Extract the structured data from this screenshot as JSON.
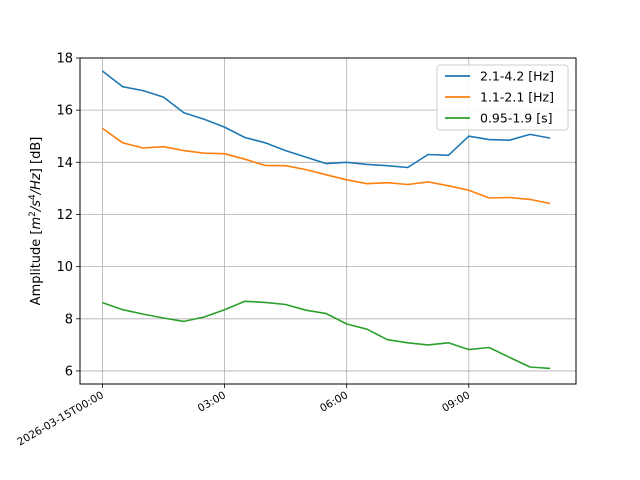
{
  "chart_data": {
    "type": "line",
    "xlabel": "",
    "ylabel_html": "Amplitude [m²/s⁴/Hz] [dB]",
    "ylabel_parts": [
      "Amplitude [",
      "m",
      "2",
      "/",
      "s",
      "4",
      "/",
      "Hz",
      "] [dB]"
    ],
    "ylim": [
      5.5,
      18.0
    ],
    "yticks": [
      6,
      8,
      10,
      12,
      14,
      16,
      18
    ],
    "ytick_labels": [
      "6",
      "8",
      "10",
      "12",
      "14",
      "16",
      "18"
    ],
    "xlim": [
      "2026-03-14T23:27",
      "2026-03-15T11:38"
    ],
    "xticks": [
      "2026-03-15T00:00",
      "2026-03-15T03:00",
      "2026-03-15T06:00",
      "2026-03-15T09:00"
    ],
    "xtick_labels": [
      "2026-03-15T00:00",
      "03:00",
      "06:00",
      "09:00"
    ],
    "grid": true,
    "legend_position": "top-right",
    "x": [
      "2026-03-15T00:00",
      "2026-03-15T00:30",
      "2026-03-15T01:00",
      "2026-03-15T01:30",
      "2026-03-15T02:00",
      "2026-03-15T02:30",
      "2026-03-15T03:00",
      "2026-03-15T03:30",
      "2026-03-15T04:00",
      "2026-03-15T04:30",
      "2026-03-15T05:00",
      "2026-03-15T05:30",
      "2026-03-15T06:00",
      "2026-03-15T06:30",
      "2026-03-15T07:00",
      "2026-03-15T07:30",
      "2026-03-15T08:00",
      "2026-03-15T08:30",
      "2026-03-15T09:00",
      "2026-03-15T09:30",
      "2026-03-15T10:00",
      "2026-03-15T10:30",
      "2026-03-15T11:00"
    ],
    "series": [
      {
        "name": "2.1-4.2 [Hz]",
        "color": "#1f77b4",
        "values": [
          17.5,
          16.9,
          16.75,
          16.5,
          15.9,
          15.65,
          15.35,
          14.95,
          14.75,
          14.45,
          14.2,
          13.95,
          14.0,
          13.92,
          13.87,
          13.8,
          14.3,
          14.27,
          15.0,
          14.87,
          14.85,
          15.07,
          14.93
        ]
      },
      {
        "name": "1.1-2.1 [Hz]",
        "color": "#ff7f0e",
        "values": [
          15.3,
          14.75,
          14.55,
          14.6,
          14.45,
          14.35,
          14.33,
          14.12,
          13.88,
          13.87,
          13.72,
          13.52,
          13.33,
          13.18,
          13.22,
          13.15,
          13.25,
          13.1,
          12.93,
          12.63,
          12.65,
          12.58,
          12.42
        ]
      },
      {
        "name": "0.95-1.9 [s]",
        "color": "#2ca02c",
        "values": [
          8.62,
          8.35,
          8.18,
          8.03,
          7.9,
          8.07,
          8.35,
          8.67,
          8.63,
          8.55,
          8.33,
          8.2,
          7.8,
          7.6,
          7.2,
          7.08,
          7.0,
          7.08,
          6.82,
          6.9,
          6.52,
          6.15,
          6.1
        ]
      }
    ]
  }
}
